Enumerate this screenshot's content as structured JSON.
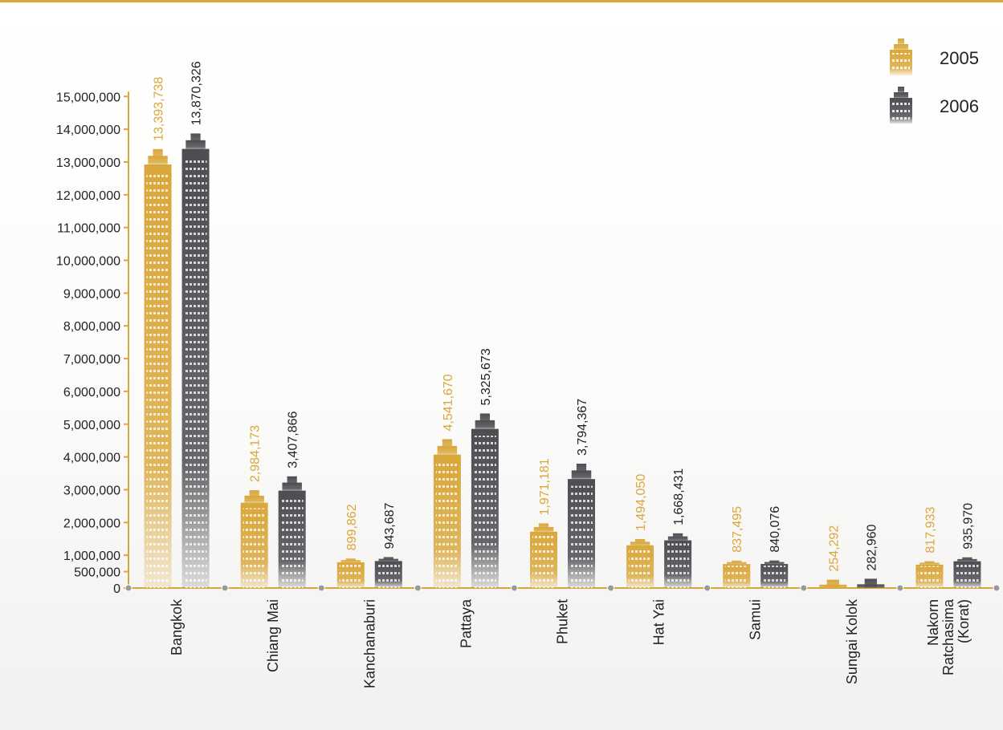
{
  "chart_data": {
    "type": "bar",
    "categories": [
      "Bangkok",
      "Chiang Mai",
      "Kanchanaburi",
      "Pattaya",
      "Phuket",
      "Hat Yai",
      "Samui",
      "Sungai Kolok",
      "Nakorn\nRatchasima\n(Korat)"
    ],
    "series": [
      {
        "name": "2005",
        "color": "#d9a73a",
        "values": [
          13393738,
          2984173,
          899862,
          4541670,
          1971181,
          1494050,
          837495,
          254292,
          817933
        ],
        "labels": [
          "13,393,738",
          "2,984,173",
          "899,862",
          "4,541,670",
          "1,971,181",
          "1,494,050",
          "837,495",
          "254,292",
          "817,933"
        ]
      },
      {
        "name": "2006",
        "color": "#4d4d52",
        "values": [
          13870326,
          3407866,
          943687,
          5325673,
          3794367,
          1668431,
          840076,
          282960,
          935970
        ],
        "labels": [
          "13,870,326",
          "3,407,866",
          "943,687",
          "5,325,673",
          "3,794,367",
          "1,668,431",
          "840,076",
          "282,960",
          "935,970"
        ]
      }
    ],
    "yticks": [
      "0",
      "500,000",
      "1,000,000",
      "2,000,000",
      "3,000,000",
      "4,000,000",
      "5,000,000",
      "6,000,000",
      "7,000,000",
      "8,000,000",
      "9,000,000",
      "10,000,000",
      "11,000,000",
      "12,000,000",
      "13,000,000",
      "14,000,000",
      "15,000,000"
    ],
    "ylim": [
      0,
      15000000
    ],
    "grid": false,
    "legend": "top-right",
    "title": "",
    "xlabel": "",
    "ylabel": ""
  }
}
